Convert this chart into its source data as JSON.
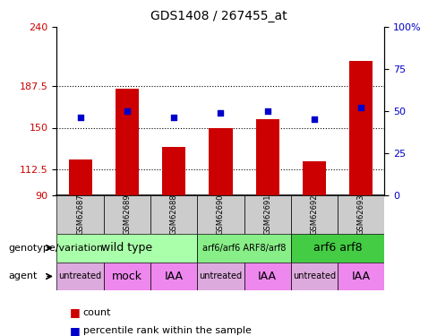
{
  "title": "GDS1408 / 267455_at",
  "samples": [
    "GSM62687",
    "GSM62689",
    "GSM62688",
    "GSM62690",
    "GSM62691",
    "GSM62692",
    "GSM62693"
  ],
  "bar_values": [
    122,
    185,
    133,
    150,
    158,
    120,
    210
  ],
  "percentile_values": [
    46,
    50,
    46,
    49,
    50,
    45,
    52
  ],
  "ylim_left": [
    90,
    240
  ],
  "ylim_right": [
    0,
    100
  ],
  "yticks_left": [
    90,
    112.5,
    150,
    187.5,
    240
  ],
  "yticks_right": [
    0,
    25,
    50,
    75,
    100
  ],
  "bar_color": "#cc0000",
  "percentile_color": "#0000cc",
  "grid_color": "black",
  "genotype_groups": [
    {
      "label": "wild type",
      "start": 0,
      "end": 3,
      "color": "#aaffaa",
      "fontsize": 9
    },
    {
      "label": "arf6/arf6 ARF8/arf8",
      "start": 3,
      "end": 5,
      "color": "#88ee88",
      "fontsize": 7
    },
    {
      "label": "arf6 arf8",
      "start": 5,
      "end": 7,
      "color": "#44cc44",
      "fontsize": 9
    }
  ],
  "agent_groups": [
    {
      "label": "untreated",
      "start": 0,
      "end": 1,
      "color": "#ddaadd",
      "fontsize": 7
    },
    {
      "label": "mock",
      "start": 1,
      "end": 2,
      "color": "#ee88ee",
      "fontsize": 9
    },
    {
      "label": "IAA",
      "start": 2,
      "end": 3,
      "color": "#ee88ee",
      "fontsize": 9
    },
    {
      "label": "untreated",
      "start": 3,
      "end": 4,
      "color": "#ddaadd",
      "fontsize": 7
    },
    {
      "label": "IAA",
      "start": 4,
      "end": 5,
      "color": "#ee88ee",
      "fontsize": 9
    },
    {
      "label": "untreated",
      "start": 5,
      "end": 6,
      "color": "#ddaadd",
      "fontsize": 7
    },
    {
      "label": "IAA",
      "start": 6,
      "end": 7,
      "color": "#ee88ee",
      "fontsize": 9
    }
  ],
  "legend_count_color": "#cc0000",
  "legend_percentile_color": "#0000cc",
  "xlabel_genotype": "genotype/variation",
  "xlabel_agent": "agent",
  "right_yaxis_color": "#0000cc",
  "left_yaxis_color": "#cc0000"
}
